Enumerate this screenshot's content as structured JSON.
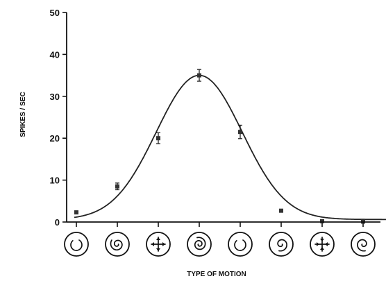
{
  "chart_data": {
    "type": "scatter",
    "title": "",
    "xlabel": "TYPE OF MOTION",
    "ylabel": "SPIKES / SEC",
    "ylim": [
      0,
      50
    ],
    "yticks": [
      0,
      10,
      20,
      30,
      40,
      50
    ],
    "grid": false,
    "legend": "none",
    "categories": [
      "ccw-circular",
      "ccw-spiral-in",
      "expansion",
      "cw-spiral-in",
      "cw-circular",
      "cw-spiral-out",
      "contraction",
      "ccw-spiral-out"
    ],
    "series": [
      {
        "values": [
          2.3,
          8.5,
          20.0,
          35.0,
          21.5,
          2.7,
          0.2,
          0.1
        ],
        "errors": [
          0.3,
          0.8,
          1.3,
          1.4,
          1.6,
          0.3,
          0.1,
          0.1
        ]
      }
    ],
    "fit_curve": {
      "type": "gaussian",
      "peak": 35.0,
      "center_index": 3.0,
      "sigma_index": 1.05,
      "baseline": 0.6
    }
  }
}
